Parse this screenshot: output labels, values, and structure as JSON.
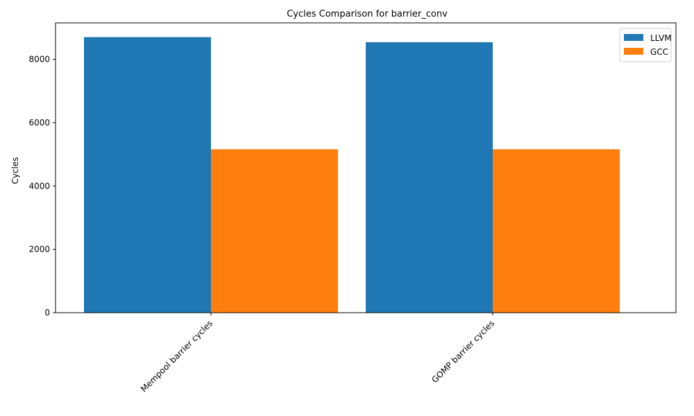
{
  "chart_data": {
    "type": "bar",
    "title": "Cycles Comparison for barrier_conv",
    "xlabel": "",
    "ylabel": "Cycles",
    "categories": [
      "Mempool barrier cycles",
      "GOMP barrier cycles"
    ],
    "series": [
      {
        "name": "LLVM",
        "color": "#1f77b4",
        "values": [
          8700,
          8540
        ]
      },
      {
        "name": "GCC",
        "color": "#ff7f0e",
        "values": [
          5160,
          5160
        ]
      }
    ],
    "ylim": [
      0,
      9150
    ],
    "yticks": [
      0,
      2000,
      4000,
      6000,
      8000
    ],
    "grid": false,
    "legend_position": "top-right"
  }
}
